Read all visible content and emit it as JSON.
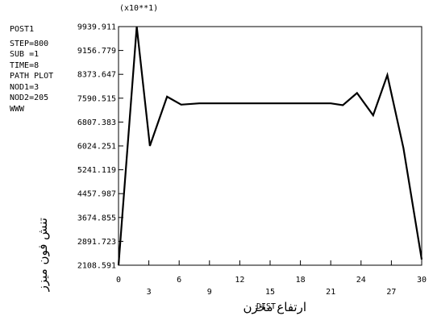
{
  "chart_data": {
    "type": "line",
    "scale_note": "(x10**1)",
    "info_lines": [
      "POST1",
      "STEP=800",
      "SUB =1",
      "TIME=8",
      "PATH PLOT",
      "NOD1=3",
      "NOD2=205",
      "WWW"
    ],
    "xlabel_en": "DIST",
    "xlabel_fa": "ارتفاع مخزن",
    "ylabel_fa": "تنش فون میزز",
    "xlim": [
      0,
      30
    ],
    "ylim": [
      2108.591,
      9939.911
    ],
    "x_ticks_top": [
      "0",
      "6",
      "12",
      "18",
      "24",
      "30"
    ],
    "x_ticks_bottom": [
      "3",
      "9",
      "15",
      "21",
      "27"
    ],
    "y_ticks": [
      "2108.591",
      "2891.723",
      "3674.855",
      "4457.987",
      "5241.119",
      "6024.251",
      "6807.383",
      "7590.515",
      "8373.647",
      "9156.779",
      "9939.911"
    ],
    "grid": false,
    "series": [
      {
        "x": [
          0,
          1.8,
          3.1,
          4.8,
          6.2,
          8.0,
          12,
          18,
          21,
          22.2,
          23.6,
          25.2,
          26.6,
          28.2,
          30
        ],
        "y": [
          2108.591,
          9939.911,
          6024.251,
          7640,
          7380,
          7420,
          7420,
          7420,
          7420,
          7360,
          7760,
          7030,
          8350,
          5950,
          2300
        ]
      }
    ]
  }
}
